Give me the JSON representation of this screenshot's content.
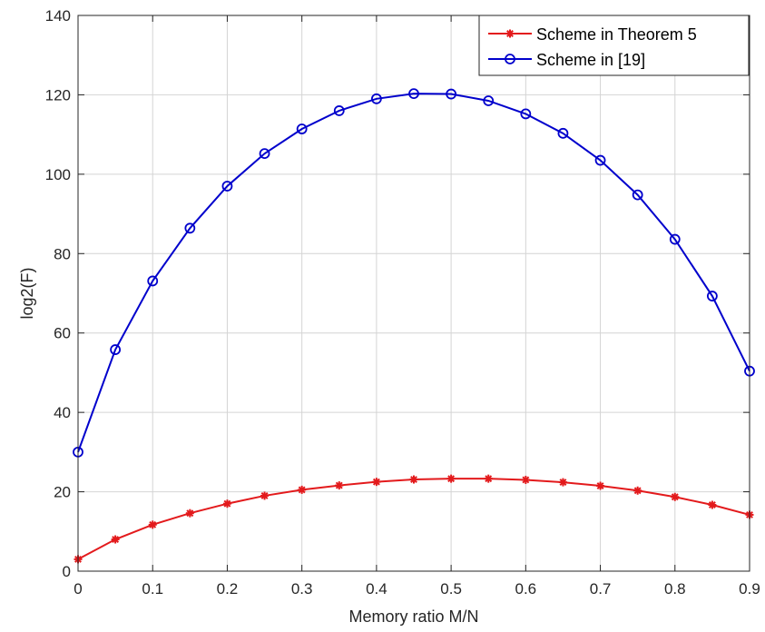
{
  "chart_data": {
    "type": "line",
    "xlabel": "Memory ratio M/N",
    "ylabel": "log2(F)",
    "xlim": [
      0,
      0.9
    ],
    "ylim": [
      0,
      140
    ],
    "x_ticks": [
      0,
      0.1,
      0.2,
      0.3,
      0.4,
      0.5,
      0.6,
      0.7,
      0.8,
      0.9
    ],
    "x_tick_labels": [
      "0",
      "0.1",
      "0.2",
      "0.3",
      "0.4",
      "0.5",
      "0.6",
      "0.7",
      "0.8",
      "0.9"
    ],
    "y_ticks": [
      0,
      20,
      40,
      60,
      80,
      100,
      120,
      140
    ],
    "y_tick_labels": [
      "0",
      "20",
      "40",
      "60",
      "80",
      "100",
      "120",
      "140"
    ],
    "grid": true,
    "legend_position": "top-right",
    "x": [
      0,
      0.05,
      0.1,
      0.15,
      0.2,
      0.25,
      0.3,
      0.35,
      0.4,
      0.45,
      0.5,
      0.55,
      0.6,
      0.65,
      0.7,
      0.75,
      0.8,
      0.85,
      0.9
    ],
    "series": [
      {
        "name": "Scheme in Theorem 5",
        "color": "#e31a1c",
        "marker": "asterisk",
        "values": [
          3.0,
          8.0,
          11.7,
          14.6,
          17.0,
          19.0,
          20.5,
          21.6,
          22.5,
          23.1,
          23.3,
          23.3,
          23.0,
          22.4,
          21.5,
          20.3,
          18.7,
          16.7,
          14.2
        ]
      },
      {
        "name": "Scheme in [19]",
        "color": "#0000cc",
        "marker": "circle",
        "values": [
          30.0,
          55.8,
          73.1,
          86.4,
          97.0,
          105.2,
          111.4,
          116.0,
          119.0,
          120.3,
          120.2,
          118.5,
          115.2,
          110.3,
          103.5,
          94.8,
          83.6,
          69.3,
          50.4
        ]
      }
    ]
  }
}
